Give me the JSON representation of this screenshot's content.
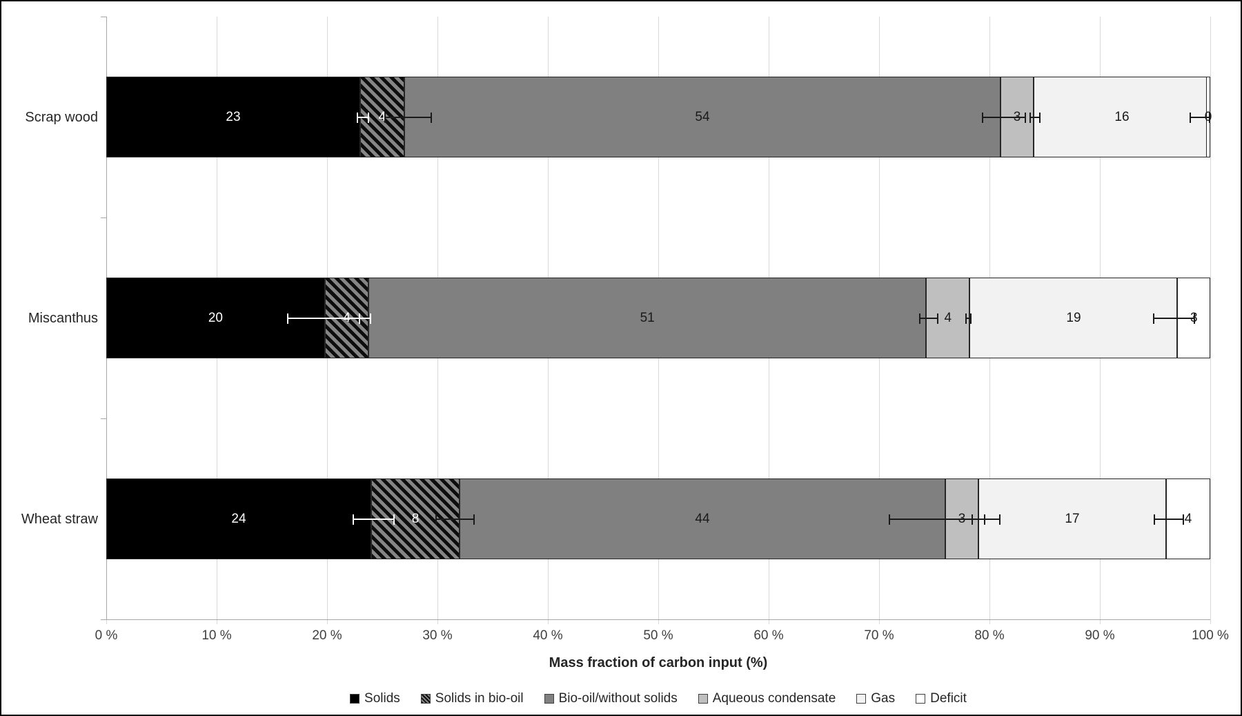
{
  "chart_data": {
    "type": "bar",
    "orientation": "horizontal",
    "stacked": true,
    "title": "",
    "xlabel": "Mass fraction of carbon input (%)",
    "ylabel": "",
    "xlim": [
      0,
      100
    ],
    "grid": "vertical gridlines every 10%",
    "legend_position": "bottom",
    "x_tick_labels": [
      "0 %",
      "10 %",
      "20 %",
      "30 %",
      "40 %",
      "50 %",
      "60 %",
      "70 %",
      "80 %",
      "90 %",
      "100 %"
    ],
    "categories": [
      "Scrap wood",
      "Miscanthus",
      "Wheat straw"
    ],
    "series": [
      {
        "name": "Solids",
        "color": "#000000",
        "pattern": "solid",
        "label_color": "#ffffff",
        "values": [
          23,
          20,
          24
        ]
      },
      {
        "name": "Solids in bio-oil",
        "color": "#808080",
        "pattern": "diagonal-hatch-black",
        "label_color": "#ffffff",
        "values": [
          4,
          4,
          8
        ]
      },
      {
        "name": "Bio-oil/without solids",
        "color": "#808080",
        "pattern": "solid",
        "label_color": "#1a1a1a",
        "values": [
          54,
          51,
          44
        ]
      },
      {
        "name": "Aqueous condensate",
        "color": "#bfbfbf",
        "pattern": "solid",
        "label_color": "#1a1a1a",
        "values": [
          3,
          4,
          3
        ]
      },
      {
        "name": "Gas",
        "color": "#f2f2f2",
        "pattern": "solid",
        "label_color": "#1a1a1a",
        "values": [
          16,
          19,
          17
        ]
      },
      {
        "name": "Deficit",
        "color": "#ffffff",
        "pattern": "solid",
        "label_color": "#1a1a1a",
        "values": [
          0,
          3,
          4
        ]
      }
    ],
    "error_bars": [
      [
        {
          "at_pct": 23.0,
          "from_pct": 22.7,
          "to_pct": 23.8,
          "color": "#ffffff"
        },
        {
          "at_pct": 27.0,
          "from_pct": 25.2,
          "to_pct": 29.5,
          "color": "#1a1a1a"
        },
        {
          "at_pct": 81.0,
          "from_pct": 79.3,
          "to_pct": 83.3,
          "color": "#1a1a1a"
        },
        {
          "at_pct": 84.0,
          "from_pct": 83.6,
          "to_pct": 84.6,
          "color": "#1a1a1a"
        },
        {
          "at_pct": 100.0,
          "from_pct": 98.1,
          "to_pct": 100.0,
          "color": "#1a1a1a"
        }
      ],
      [
        {
          "at_pct": 19.8,
          "from_pct": 16.4,
          "to_pct": 23.0,
          "color": "#ffffff"
        },
        {
          "at_pct": 23.8,
          "from_pct": 22.9,
          "to_pct": 24.0,
          "color": "#ffffff"
        },
        {
          "at_pct": 74.3,
          "from_pct": 73.6,
          "to_pct": 75.4,
          "color": "#1a1a1a"
        },
        {
          "at_pct": 78.2,
          "from_pct": 77.8,
          "to_pct": 78.4,
          "color": "#1a1a1a"
        },
        {
          "at_pct": 97.0,
          "from_pct": 94.8,
          "to_pct": 98.6,
          "color": "#1a1a1a"
        }
      ],
      [
        {
          "at_pct": 24.0,
          "from_pct": 22.3,
          "to_pct": 26.1,
          "color": "#ffffff"
        },
        {
          "at_pct": 32.0,
          "from_pct": 29.8,
          "to_pct": 33.4,
          "color": "#1a1a1a"
        },
        {
          "at_pct": 76.0,
          "from_pct": 70.9,
          "to_pct": 79.6,
          "color": "#1a1a1a"
        },
        {
          "at_pct": 79.0,
          "from_pct": 78.4,
          "to_pct": 81.0,
          "color": "#1a1a1a"
        },
        {
          "at_pct": 96.0,
          "from_pct": 94.9,
          "to_pct": 97.6,
          "color": "#1a1a1a"
        }
      ]
    ],
    "colors": {
      "gridline": "#d9d9d9",
      "axis_line": "#a6a6a6",
      "tick_label": "#404040",
      "segment_border": "#262626",
      "frame_border": "#000000"
    }
  }
}
